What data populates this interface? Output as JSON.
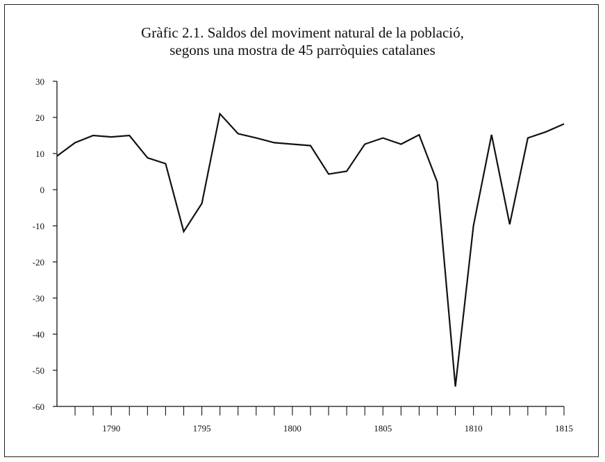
{
  "chart_data": {
    "type": "line",
    "title_line1": "Gràfic 2.1. Saldos del moviment natural de la població,",
    "title_line2": "segons una mostra de 45 parròquies catalanes",
    "xlabel": "",
    "ylabel": "",
    "xlim": [
      1787,
      1815
    ],
    "ylim": [
      -60,
      30
    ],
    "y_ticks": [
      30,
      20,
      10,
      0,
      -10,
      -20,
      -30,
      -40,
      -50,
      -60
    ],
    "y_tick_labels": [
      "30",
      "20",
      "10",
      "0",
      "-10",
      "-20",
      "-30",
      "-40",
      "-50",
      "-60"
    ],
    "x_labeled_ticks": [
      1790,
      1795,
      1800,
      1805,
      1810,
      1815
    ],
    "x_tick_labels": [
      "1790",
      "1795",
      "1800",
      "1805",
      "1810",
      "1815"
    ],
    "grid": false,
    "series": [
      {
        "x": [
          1787,
          1788,
          1789,
          1790,
          1791,
          1792,
          1793,
          1794,
          1795,
          1796,
          1797,
          1798,
          1799,
          1800,
          1801,
          1802,
          1803,
          1804,
          1805,
          1806,
          1807,
          1808,
          1809,
          1810,
          1811,
          1812,
          1813,
          1814,
          1815
        ],
        "values": [
          9.3,
          13,
          15,
          14.6,
          15,
          8.8,
          7.2,
          -11.6,
          -3.8,
          21,
          15.5,
          14.3,
          13,
          12.6,
          12.2,
          4.3,
          5.1,
          12.6,
          14.3,
          12.6,
          15.2,
          2.1,
          -54.5,
          -10,
          15.2,
          -9.6,
          14.3,
          16,
          18.2
        ]
      }
    ],
    "line_color": "#111111"
  }
}
